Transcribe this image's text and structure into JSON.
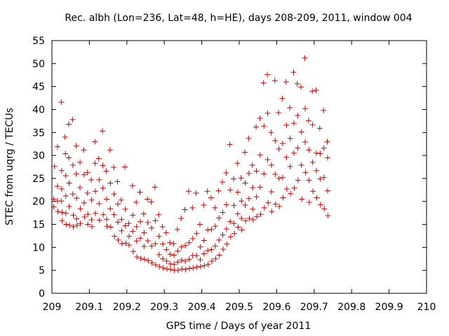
{
  "chart_data": {
    "type": "scatter",
    "title": "Rec. albh (Lon=236, Lat=48, h=HE), days 208-209, 2011, window 004",
    "xlabel": "GPS time / Days of year 2011",
    "ylabel": "STEC from uqrg / TECUs",
    "xlim": [
      209,
      210
    ],
    "ylim": [
      0,
      55
    ],
    "xticks": [
      209,
      209.1,
      209.2,
      209.3,
      209.4,
      209.5,
      209.6,
      209.7,
      209.8,
      209.9,
      210
    ],
    "xtick_labels": [
      "209",
      "209.1",
      "209.2",
      "209.3",
      "209.4",
      "209.5",
      "209.6",
      "209.7",
      "209.8",
      "209.9",
      "210"
    ],
    "yticks": [
      0,
      5,
      10,
      15,
      20,
      25,
      30,
      35,
      40,
      45,
      50,
      55
    ],
    "grid": false,
    "marker": "+",
    "color": "#cc0000",
    "series": [
      {
        "points": [
          [
            209.005,
            20.5
          ],
          [
            209.005,
            18.8
          ],
          [
            209.007,
            27.6
          ],
          [
            209.015,
            31.9
          ],
          [
            209.015,
            23.3
          ],
          [
            209.015,
            20.1
          ],
          [
            209.016,
            17.8
          ],
          [
            209.025,
            41.6
          ],
          [
            209.026,
            26.7
          ],
          [
            209.026,
            22.7
          ],
          [
            209.025,
            20.1
          ],
          [
            209.027,
            17.6
          ],
          [
            209.027,
            15.8
          ],
          [
            209.035,
            34.0
          ],
          [
            209.036,
            30.4
          ],
          [
            209.037,
            25.6
          ],
          [
            209.037,
            21.2
          ],
          [
            209.037,
            17.4
          ],
          [
            209.038,
            15.0
          ],
          [
            209.045,
            36.8
          ],
          [
            209.045,
            29.5
          ],
          [
            209.046,
            24.0
          ],
          [
            209.046,
            18.9
          ],
          [
            209.047,
            14.8
          ],
          [
            209.055,
            37.8
          ],
          [
            209.056,
            27.9
          ],
          [
            209.056,
            21.6
          ],
          [
            209.057,
            17.0
          ],
          [
            209.057,
            14.5
          ],
          [
            209.065,
            32.1
          ],
          [
            209.065,
            26.0
          ],
          [
            209.066,
            20.7
          ],
          [
            209.066,
            16.2
          ],
          [
            209.067,
            14.8
          ],
          [
            209.075,
            28.5
          ],
          [
            209.075,
            23.0
          ],
          [
            209.076,
            18.4
          ],
          [
            209.076,
            15.2
          ],
          [
            209.085,
            31.2
          ],
          [
            209.086,
            25.8
          ],
          [
            209.086,
            19.7
          ],
          [
            209.087,
            16.6
          ],
          [
            209.095,
            26.3
          ],
          [
            209.095,
            21.8
          ],
          [
            209.096,
            17.2
          ],
          [
            209.096,
            15.0
          ],
          [
            209.105,
            24.7
          ],
          [
            209.106,
            20.3
          ],
          [
            209.106,
            16.0
          ],
          [
            209.107,
            14.5
          ],
          [
            209.115,
            33.0
          ],
          [
            209.115,
            28.3
          ],
          [
            209.116,
            22.2
          ],
          [
            209.116,
            17.4
          ],
          [
            209.125,
            29.3
          ],
          [
            209.126,
            24.7
          ],
          [
            209.126,
            19.5
          ],
          [
            209.127,
            15.9
          ],
          [
            209.135,
            35.3
          ],
          [
            209.136,
            27.8
          ],
          [
            209.136,
            22.9
          ],
          [
            209.137,
            17.1
          ],
          [
            209.145,
            26.6
          ],
          [
            209.146,
            20.5
          ],
          [
            209.146,
            16.1
          ],
          [
            209.147,
            14.6
          ],
          [
            209.155,
            31.2
          ],
          [
            209.156,
            24.0
          ],
          [
            209.156,
            18.4
          ],
          [
            209.157,
            14.4
          ],
          [
            209.165,
            27.4
          ],
          [
            209.166,
            21.6
          ],
          [
            209.166,
            17.1
          ],
          [
            209.167,
            12.4
          ],
          [
            209.175,
            24.3
          ],
          [
            209.176,
            19.4
          ],
          [
            209.176,
            15.5
          ],
          [
            209.177,
            11.6
          ],
          [
            209.185,
            20.3
          ],
          [
            209.186,
            16.1
          ],
          [
            209.186,
            13.6
          ],
          [
            209.187,
            10.8
          ],
          [
            209.195,
            27.5
          ],
          [
            209.196,
            18.3
          ],
          [
            209.196,
            14.7
          ],
          [
            209.197,
            10.9
          ],
          [
            209.205,
            15.2
          ],
          [
            209.206,
            12.4
          ],
          [
            209.206,
            10.5
          ],
          [
            209.215,
            23.4
          ],
          [
            209.216,
            17.0
          ],
          [
            209.216,
            13.5
          ],
          [
            209.217,
            9.1
          ],
          [
            209.225,
            19.8
          ],
          [
            209.226,
            14.5
          ],
          [
            209.226,
            11.4
          ],
          [
            209.227,
            7.9
          ],
          [
            209.235,
            22.0
          ],
          [
            209.236,
            15.6
          ],
          [
            209.236,
            12.0
          ],
          [
            209.237,
            7.6
          ],
          [
            209.245,
            17.3
          ],
          [
            209.246,
            13.2
          ],
          [
            209.246,
            10.2
          ],
          [
            209.247,
            7.4
          ],
          [
            209.255,
            20.5
          ],
          [
            209.256,
            15.4
          ],
          [
            209.256,
            11.4
          ],
          [
            209.257,
            7.1
          ],
          [
            209.265,
            19.9
          ],
          [
            209.266,
            14.2
          ],
          [
            209.266,
            10.3
          ],
          [
            209.267,
            6.6
          ],
          [
            209.275,
            23.1
          ],
          [
            209.276,
            15.8
          ],
          [
            209.276,
            10.8
          ],
          [
            209.277,
            6.2
          ],
          [
            209.285,
            17.1
          ],
          [
            209.286,
            12.4
          ],
          [
            209.286,
            8.4
          ],
          [
            209.287,
            5.8
          ],
          [
            209.295,
            14.5
          ],
          [
            209.296,
            10.7
          ],
          [
            209.296,
            7.5
          ],
          [
            209.297,
            5.5
          ],
          [
            209.305,
            13.2
          ],
          [
            209.306,
            9.5
          ],
          [
            209.306,
            7.0
          ],
          [
            209.307,
            5.3
          ],
          [
            209.315,
            11.0
          ],
          [
            209.316,
            8.5
          ],
          [
            209.316,
            6.4
          ],
          [
            209.317,
            5.2
          ],
          [
            209.325,
            10.8
          ],
          [
            209.326,
            8.3
          ],
          [
            209.326,
            6.3
          ],
          [
            209.327,
            5.0
          ],
          [
            209.335,
            13.9
          ],
          [
            209.336,
            9.2
          ],
          [
            209.336,
            6.8
          ],
          [
            209.337,
            5.0
          ],
          [
            209.345,
            16.3
          ],
          [
            209.346,
            10.1
          ],
          [
            209.346,
            7.2
          ],
          [
            209.347,
            5.3
          ],
          [
            209.355,
            18.2
          ],
          [
            209.356,
            10.4
          ],
          [
            209.356,
            7.0
          ],
          [
            209.357,
            5.2
          ],
          [
            209.365,
            22.2
          ],
          [
            209.366,
            11.0
          ],
          [
            209.366,
            7.4
          ],
          [
            209.367,
            5.4
          ],
          [
            209.375,
            18.6
          ],
          [
            209.376,
            11.9
          ],
          [
            209.376,
            8.2
          ],
          [
            209.377,
            5.5
          ],
          [
            209.385,
            21.8
          ],
          [
            209.386,
            13.0
          ],
          [
            209.386,
            8.2
          ],
          [
            209.387,
            5.7
          ],
          [
            209.395,
            15.0
          ],
          [
            209.396,
            10.1
          ],
          [
            209.396,
            7.3
          ],
          [
            209.397,
            5.8
          ],
          [
            209.405,
            19.2
          ],
          [
            209.406,
            11.5
          ],
          [
            209.406,
            8.6
          ],
          [
            209.407,
            6.0
          ],
          [
            209.415,
            22.2
          ],
          [
            209.416,
            13.8
          ],
          [
            209.416,
            9.3
          ],
          [
            209.417,
            6.3
          ],
          [
            209.425,
            20.8
          ],
          [
            209.426,
            13.9
          ],
          [
            209.426,
            9.5
          ],
          [
            209.427,
            7.0
          ],
          [
            209.435,
            18.6
          ],
          [
            209.436,
            14.6
          ],
          [
            209.436,
            10.3
          ],
          [
            209.437,
            7.5
          ],
          [
            209.445,
            22.3
          ],
          [
            209.446,
            16.4
          ],
          [
            209.446,
            11.6
          ],
          [
            209.447,
            8.3
          ],
          [
            209.455,
            24.2
          ],
          [
            209.456,
            17.6
          ],
          [
            209.456,
            12.7
          ],
          [
            209.457,
            9.6
          ],
          [
            209.465,
            26.2
          ],
          [
            209.466,
            19.3
          ],
          [
            209.466,
            14.0
          ],
          [
            209.467,
            10.7
          ],
          [
            209.475,
            32.4
          ],
          [
            209.476,
            22.5
          ],
          [
            209.476,
            15.6
          ],
          [
            209.477,
            12.3
          ],
          [
            209.485,
            24.9
          ],
          [
            209.486,
            19.1
          ],
          [
            209.486,
            15.2
          ],
          [
            209.487,
            13.0
          ],
          [
            209.495,
            28.3
          ],
          [
            209.496,
            22.0
          ],
          [
            209.496,
            17.3
          ],
          [
            209.497,
            14.4
          ],
          [
            209.505,
            25.1
          ],
          [
            209.506,
            20.1
          ],
          [
            209.506,
            16.3
          ],
          [
            209.507,
            13.8
          ],
          [
            209.515,
            30.7
          ],
          [
            209.516,
            24.0
          ],
          [
            209.516,
            19.2
          ],
          [
            209.517,
            15.8
          ],
          [
            209.525,
            33.7
          ],
          [
            209.526,
            26.1
          ],
          [
            209.526,
            20.6
          ],
          [
            209.527,
            16.3
          ],
          [
            209.535,
            27.9
          ],
          [
            209.536,
            23.0
          ],
          [
            209.536,
            18.3
          ],
          [
            209.537,
            16.0
          ],
          [
            209.545,
            36.2
          ],
          [
            209.546,
            26.6
          ],
          [
            209.546,
            21.0
          ],
          [
            209.547,
            16.7
          ],
          [
            209.555,
            38.1
          ],
          [
            209.556,
            30.1
          ],
          [
            209.556,
            23.1
          ],
          [
            209.557,
            17.2
          ],
          [
            209.565,
            45.8
          ],
          [
            209.566,
            36.4
          ],
          [
            209.566,
            26.0
          ],
          [
            209.567,
            18.6
          ],
          [
            209.575,
            47.6
          ],
          [
            209.576,
            39.2
          ],
          [
            209.576,
            29.1
          ],
          [
            209.577,
            19.7
          ],
          [
            209.585,
            35.0
          ],
          [
            209.586,
            27.9
          ],
          [
            209.586,
            22.1
          ],
          [
            209.587,
            17.8
          ],
          [
            209.595,
            46.3
          ],
          [
            209.596,
            33.2
          ],
          [
            209.596,
            25.9
          ],
          [
            209.597,
            19.4
          ],
          [
            209.605,
            39.3
          ],
          [
            209.606,
            31.4
          ],
          [
            209.606,
            25.0
          ],
          [
            209.607,
            18.9
          ],
          [
            209.615,
            42.4
          ],
          [
            209.616,
            32.6
          ],
          [
            209.616,
            25.2
          ],
          [
            209.617,
            20.8
          ],
          [
            209.625,
            46.0
          ],
          [
            209.626,
            36.6
          ],
          [
            209.626,
            29.6
          ],
          [
            209.627,
            22.7
          ],
          [
            209.635,
            40.4
          ],
          [
            209.636,
            33.7
          ],
          [
            209.636,
            27.6
          ],
          [
            209.637,
            21.7
          ],
          [
            209.645,
            48.1
          ],
          [
            209.646,
            37.0
          ],
          [
            209.646,
            30.5
          ],
          [
            209.647,
            22.9
          ],
          [
            209.655,
            45.6
          ],
          [
            209.656,
            38.7
          ],
          [
            209.656,
            31.6
          ],
          [
            209.657,
            24.6
          ],
          [
            209.665,
            44.9
          ],
          [
            209.666,
            35.1
          ],
          [
            209.666,
            27.9
          ],
          [
            209.667,
            20.5
          ],
          [
            209.675,
            51.2
          ],
          [
            209.676,
            40.2
          ],
          [
            209.676,
            32.9
          ],
          [
            209.677,
            26.3
          ],
          [
            209.685,
            37.6
          ],
          [
            209.686,
            31.2
          ],
          [
            209.686,
            24.6
          ],
          [
            209.687,
            19.8
          ],
          [
            209.695,
            44.0
          ],
          [
            209.696,
            36.7
          ],
          [
            209.696,
            28.5
          ],
          [
            209.697,
            22.2
          ],
          [
            209.705,
            44.2
          ],
          [
            209.706,
            30.5
          ],
          [
            209.706,
            26.7
          ],
          [
            209.707,
            20.8
          ],
          [
            209.715,
            35.9
          ],
          [
            209.716,
            30.4
          ],
          [
            209.716,
            24.9
          ],
          [
            209.717,
            19.3
          ],
          [
            209.725,
            39.8
          ],
          [
            209.726,
            31.6
          ],
          [
            209.726,
            25.2
          ],
          [
            209.727,
            18.4
          ],
          [
            209.735,
            33.0
          ],
          [
            209.736,
            29.5
          ],
          [
            209.736,
            22.3
          ],
          [
            209.737,
            16.9
          ]
        ]
      }
    ]
  }
}
